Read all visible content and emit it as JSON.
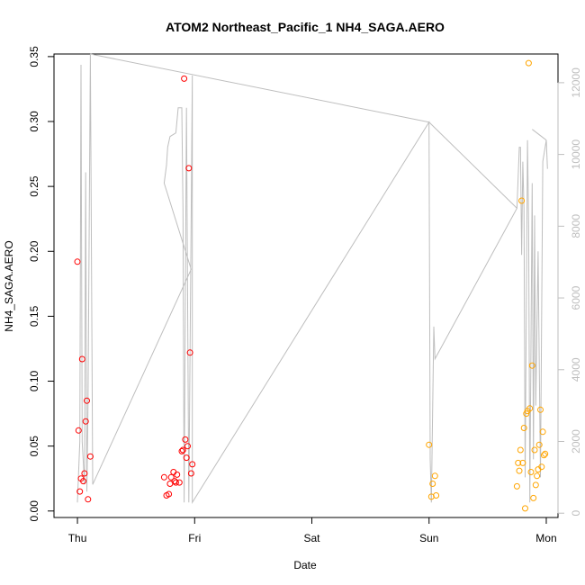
{
  "chart_data": {
    "type": "scatter",
    "title": "ATOM2 Northeast_Pacific_1 NH4_SAGA.AERO",
    "xlabel": "Date",
    "ylabel": "NH4_SAGA.AERO",
    "x_unit": "days since Thursday 00:00",
    "x_ticks": [
      {
        "value": 0,
        "label": "Thu"
      },
      {
        "value": 1,
        "label": "Fri"
      },
      {
        "value": 2,
        "label": "Sat"
      },
      {
        "value": 3,
        "label": "Sun"
      },
      {
        "value": 4,
        "label": "Mon"
      }
    ],
    "xlim": [
      -0.2,
      4.1
    ],
    "ylim": [
      -0.005,
      0.352
    ],
    "y_ticks": [
      0.0,
      0.05,
      0.1,
      0.15,
      0.2,
      0.25,
      0.3,
      0.35
    ],
    "y_tick_labels": [
      "0.00",
      "0.05",
      "0.10",
      "0.15",
      "0.20",
      "0.25",
      "0.30",
      "0.35"
    ],
    "y2_ticks": [
      0,
      2000,
      4000,
      6000,
      8000,
      10000,
      12000
    ],
    "y2_tick_labels": [
      "0",
      "2000",
      "4000",
      "6000",
      "8000",
      "10000",
      "12000"
    ],
    "y2lim": [
      -120,
      12800
    ],
    "colors": {
      "red": "#ff0000",
      "orange": "#ffa500",
      "altitude_line": "#bebebe"
    },
    "series": [
      {
        "color": "#ff0000",
        "points": [
          [
            0.0,
            0.192
          ],
          [
            0.01,
            0.062
          ],
          [
            0.02,
            0.015
          ],
          [
            0.03,
            0.025
          ],
          [
            0.04,
            0.117
          ],
          [
            0.05,
            0.023
          ],
          [
            0.06,
            0.029
          ],
          [
            0.07,
            0.069
          ],
          [
            0.08,
            0.085
          ],
          [
            0.09,
            0.009
          ],
          [
            0.11,
            0.042
          ],
          [
            0.74,
            0.026
          ],
          [
            0.76,
            0.012
          ],
          [
            0.78,
            0.013
          ],
          [
            0.79,
            0.021
          ],
          [
            0.8,
            0.026
          ],
          [
            0.82,
            0.03
          ],
          [
            0.83,
            0.023
          ],
          [
            0.84,
            0.022
          ],
          [
            0.85,
            0.028
          ],
          [
            0.87,
            0.022
          ],
          [
            0.89,
            0.046
          ],
          [
            0.9,
            0.047
          ],
          [
            0.91,
            0.333
          ],
          [
            0.92,
            0.055
          ],
          [
            0.93,
            0.041
          ],
          [
            0.94,
            0.05
          ],
          [
            0.95,
            0.264
          ],
          [
            0.96,
            0.122
          ],
          [
            0.97,
            0.029
          ],
          [
            0.98,
            0.036
          ]
        ]
      },
      {
        "color": "#ffa500",
        "points": [
          [
            3.0,
            0.051
          ],
          [
            3.02,
            0.011
          ],
          [
            3.03,
            0.021
          ],
          [
            3.05,
            0.027
          ],
          [
            3.06,
            0.012
          ],
          [
            3.75,
            0.019
          ],
          [
            3.76,
            0.037
          ],
          [
            3.77,
            0.031
          ],
          [
            3.78,
            0.047
          ],
          [
            3.79,
            0.239
          ],
          [
            3.8,
            0.037
          ],
          [
            3.81,
            0.064
          ],
          [
            3.82,
            0.002
          ],
          [
            3.83,
            0.075
          ],
          [
            3.84,
            0.077
          ],
          [
            3.85,
            0.345
          ],
          [
            3.86,
            0.079
          ],
          [
            3.87,
            0.03
          ],
          [
            3.88,
            0.112
          ],
          [
            3.89,
            0.01
          ],
          [
            3.9,
            0.047
          ],
          [
            3.91,
            0.02
          ],
          [
            3.92,
            0.027
          ],
          [
            3.93,
            0.032
          ],
          [
            3.94,
            0.051
          ],
          [
            3.95,
            0.078
          ],
          [
            3.96,
            0.034
          ],
          [
            3.97,
            0.061
          ],
          [
            3.98,
            0.043
          ],
          [
            3.99,
            0.044
          ]
        ]
      }
    ],
    "altitude_line": {
      "axis": "right",
      "points": [
        [
          0.0,
          300
        ],
        [
          0.02,
          2000
        ],
        [
          0.03,
          12500
        ],
        [
          0.04,
          2000
        ],
        [
          0.06,
          800
        ],
        [
          0.07,
          9500
        ],
        [
          0.08,
          600
        ],
        [
          0.09,
          3000
        ],
        [
          0.11,
          12800
        ],
        [
          0.13,
          800
        ],
        [
          0.97,
          6800
        ],
        [
          0.74,
          9200
        ],
        [
          0.76,
          9700
        ],
        [
          0.77,
          10200
        ],
        [
          0.79,
          10500
        ],
        [
          0.84,
          10600
        ],
        [
          0.86,
          11300
        ],
        [
          0.89,
          11300
        ],
        [
          0.9,
          8500
        ],
        [
          0.91,
          300
        ],
        [
          0.93,
          11300
        ],
        [
          0.95,
          300
        ],
        [
          0.98,
          12200
        ],
        [
          0.98,
          300
        ],
        [
          3.0,
          10900
        ],
        [
          3.01,
          1500
        ],
        [
          3.02,
          300
        ],
        [
          3.04,
          5200
        ],
        [
          3.05,
          4300
        ],
        [
          3.75,
          8500
        ],
        [
          3.77,
          10200
        ],
        [
          3.78,
          10200
        ],
        [
          3.79,
          7200
        ],
        [
          3.8,
          9800
        ],
        [
          3.81,
          8500
        ],
        [
          3.82,
          1000
        ],
        [
          3.84,
          10400
        ],
        [
          3.85,
          8000
        ],
        [
          3.86,
          300
        ],
        [
          3.88,
          9200
        ],
        [
          3.89,
          1500
        ],
        [
          3.9,
          8300
        ],
        [
          3.91,
          3000
        ],
        [
          3.93,
          7300
        ],
        [
          3.95,
          1000
        ],
        [
          3.97,
          9800
        ],
        [
          3.99,
          10200
        ],
        [
          4.0,
          10400
        ],
        [
          4.01,
          9600
        ]
      ],
      "extra_segments": [
        [
          [
            0.11,
            12800
          ],
          [
            3.0,
            10900
          ]
        ],
        [
          [
            3.0,
            10900
          ],
          [
            3.75,
            8500
          ]
        ],
        [
          [
            3.88,
            10700
          ],
          [
            4.0,
            10400
          ]
        ]
      ]
    }
  }
}
